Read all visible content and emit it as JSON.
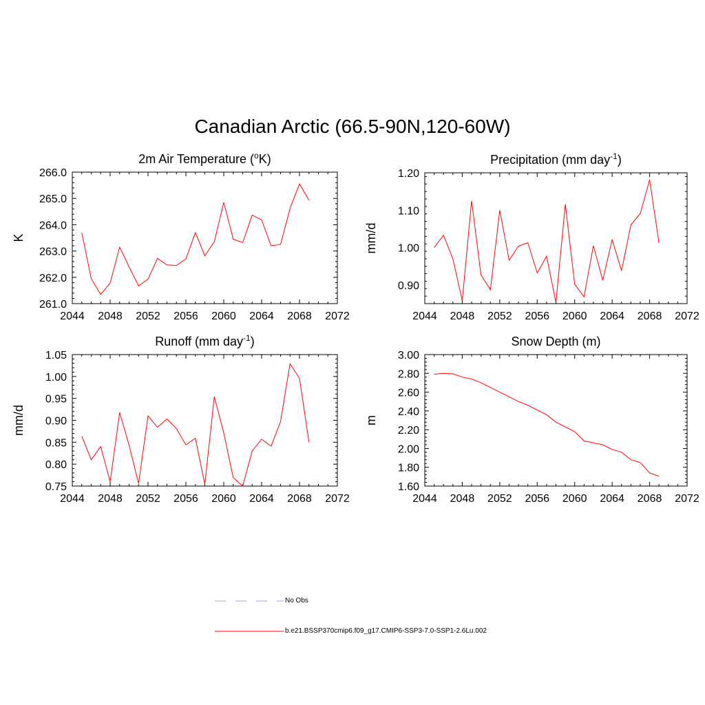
{
  "title": "Canadian Arctic (66.5-90N,120-60W)",
  "colors": {
    "series": "#ff0000",
    "obs": "#a0a0e8",
    "axis": "#000000"
  },
  "legend": {
    "obs_label": "No Obs",
    "model_label": "b.e21.BSSP370cmip6.f09_g17.CMIP6-SSP3-7.0-SSP1-2.6Lu.002"
  },
  "chart_data": [
    {
      "type": "line",
      "title": "2m Air Temperature (",
      "title_sup": "o",
      "title_after": "K)",
      "ylabel": "K",
      "xlabel": "",
      "xlim": [
        2044,
        2072
      ],
      "ylim": [
        261.0,
        266.0
      ],
      "xticks": [
        "2044",
        "2048",
        "2052",
        "2056",
        "2060",
        "2064",
        "2068",
        "2072"
      ],
      "yticks": [
        "261.0",
        "262.0",
        "263.0",
        "264.0",
        "265.0",
        "266.0"
      ],
      "x": [
        2045,
        2046,
        2047,
        2048,
        2049,
        2050,
        2051,
        2052,
        2053,
        2054,
        2055,
        2056,
        2057,
        2058,
        2059,
        2060,
        2061,
        2062,
        2063,
        2064,
        2065,
        2066,
        2067,
        2068,
        2069
      ],
      "values": [
        263.7,
        261.95,
        261.35,
        261.78,
        263.15,
        262.4,
        261.67,
        261.93,
        262.72,
        262.47,
        262.45,
        262.7,
        263.7,
        262.82,
        263.35,
        264.85,
        263.45,
        263.32,
        264.37,
        264.18,
        263.2,
        263.25,
        264.62,
        265.55,
        264.93
      ]
    },
    {
      "type": "line",
      "title": "Precipitation (mm day",
      "title_sup": "-1",
      "title_after": ")",
      "ylabel": "mm/d",
      "xlabel": "",
      "xlim": [
        2044,
        2072
      ],
      "ylim": [
        0.85,
        1.2
      ],
      "xticks": [
        "2044",
        "2048",
        "2052",
        "2056",
        "2060",
        "2064",
        "2068",
        "2072"
      ],
      "yticks": [
        "0.90",
        "1.00",
        "1.10",
        "1.20"
      ],
      "x": [
        2045,
        2046,
        2047,
        2048,
        2049,
        2050,
        2051,
        2052,
        2053,
        2054,
        2055,
        2056,
        2057,
        2058,
        2059,
        2060,
        2061,
        2062,
        2063,
        2064,
        2065,
        2066,
        2067,
        2068,
        2069
      ],
      "values": [
        1.0,
        1.033,
        0.97,
        0.858,
        1.125,
        0.927,
        0.887,
        1.1,
        0.966,
        1.004,
        1.013,
        0.932,
        0.977,
        0.853,
        1.116,
        0.902,
        0.868,
        1.005,
        0.912,
        1.021,
        0.938,
        1.061,
        1.091,
        1.181,
        1.012
      ]
    },
    {
      "type": "line",
      "title": "Runoff (mm day",
      "title_sup": "-1",
      "title_after": ")",
      "ylabel": "mm/d",
      "xlabel": "",
      "xlim": [
        2044,
        2072
      ],
      "ylim": [
        0.75,
        1.05
      ],
      "xticks": [
        "2044",
        "2048",
        "2052",
        "2056",
        "2060",
        "2064",
        "2068",
        "2072"
      ],
      "yticks": [
        "0.75",
        "0.80",
        "0.85",
        "0.90",
        "0.95",
        "1.00",
        "1.05"
      ],
      "x": [
        2045,
        2046,
        2047,
        2048,
        2049,
        2050,
        2051,
        2052,
        2053,
        2054,
        2055,
        2056,
        2057,
        2058,
        2059,
        2060,
        2061,
        2062,
        2063,
        2064,
        2065,
        2066,
        2067,
        2068,
        2069
      ],
      "values": [
        0.864,
        0.81,
        0.84,
        0.76,
        0.918,
        0.843,
        0.756,
        0.91,
        0.884,
        0.903,
        0.881,
        0.844,
        0.859,
        0.754,
        0.954,
        0.871,
        0.769,
        0.75,
        0.83,
        0.857,
        0.841,
        0.897,
        1.029,
        0.996,
        0.85
      ]
    },
    {
      "type": "line",
      "title": "Snow Depth (m)",
      "title_sup": "",
      "title_after": "",
      "ylabel": "m",
      "xlabel": "",
      "xlim": [
        2044,
        2072
      ],
      "ylim": [
        1.6,
        3.0
      ],
      "xticks": [
        "2044",
        "2048",
        "2052",
        "2056",
        "2060",
        "2064",
        "2068",
        "2072"
      ],
      "yticks": [
        "1.60",
        "1.80",
        "2.00",
        "2.20",
        "2.40",
        "2.60",
        "2.80",
        "3.00"
      ],
      "x": [
        2045,
        2046,
        2047,
        2048,
        2049,
        2050,
        2051,
        2052,
        2053,
        2054,
        2055,
        2056,
        2057,
        2058,
        2059,
        2060,
        2061,
        2062,
        2063,
        2064,
        2065,
        2066,
        2067,
        2068,
        2069
      ],
      "values": [
        2.79,
        2.8,
        2.795,
        2.76,
        2.74,
        2.7,
        2.65,
        2.6,
        2.55,
        2.5,
        2.46,
        2.41,
        2.36,
        2.28,
        2.23,
        2.18,
        2.08,
        2.06,
        2.04,
        1.99,
        1.96,
        1.88,
        1.85,
        1.74,
        1.705
      ]
    }
  ]
}
